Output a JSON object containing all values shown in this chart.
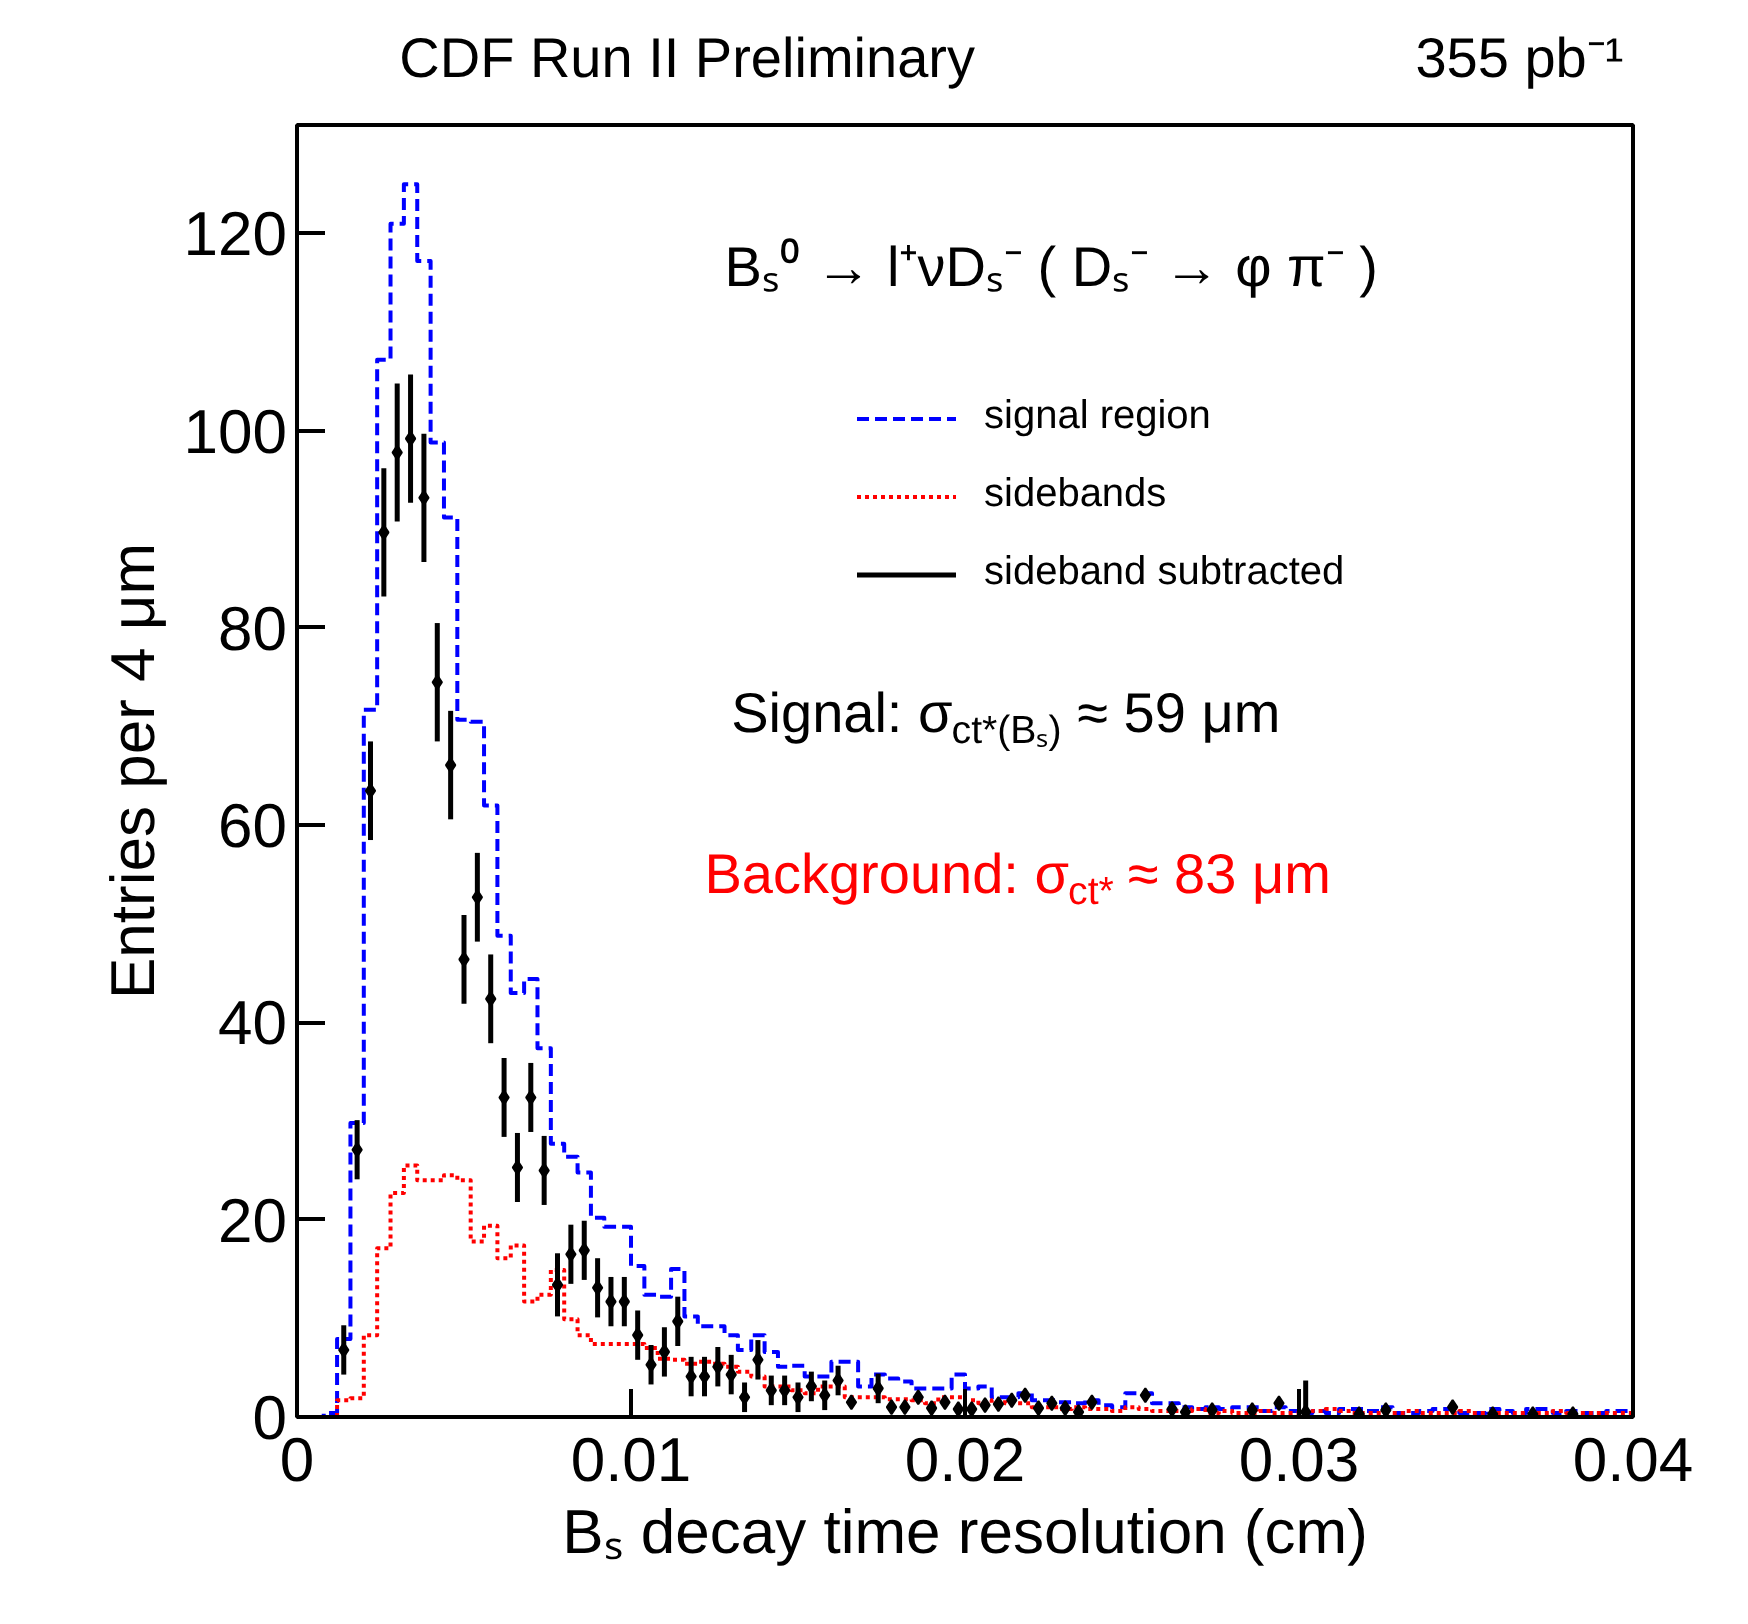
{
  "chart_data": {
    "type": "histogram",
    "title": "CDF Run II Preliminary",
    "xlabel": "Bₛ decay time resolution (cm)",
    "ylabel": "Entries per 4 μm",
    "annotations": [
      "355 pb⁻¹",
      "Bₛ⁰ → l⁺νDₛ⁻ ( Dₛ⁻ → φ π⁻ )",
      "Signal: σ$_{ct*(Bₛ)}$ ≈ 59 μm",
      "Background: σ$_{ct*}$ ≈ 83 μm"
    ],
    "bins": [
      0,
      0.0004,
      0.0008,
      0.0012,
      0.0016,
      0.002,
      0.0024,
      0.0028,
      0.0032,
      0.0036,
      0.004,
      0.0044,
      0.0048,
      0.0052,
      0.0056,
      0.006,
      0.0064,
      0.0068,
      0.0072,
      0.0076,
      0.008,
      0.0084,
      0.0088,
      0.0092,
      0.0096,
      0.01,
      0.0104,
      0.0108,
      0.0112,
      0.0116,
      0.012,
      0.0124,
      0.0128,
      0.0132,
      0.0136,
      0.014,
      0.0144,
      0.0148,
      0.0152,
      0.0156,
      0.016,
      0.0164,
      0.0168,
      0.0172,
      0.0176,
      0.018,
      0.0184,
      0.0188,
      0.0192,
      0.0196,
      0.02,
      0.0204,
      0.0208,
      0.0212,
      0.0216,
      0.022,
      0.0224,
      0.0228,
      0.0232,
      0.0236,
      0.024,
      0.0244,
      0.0248,
      0.0252,
      0.0256,
      0.026,
      0.0264,
      0.0268,
      0.0272,
      0.0276,
      0.028,
      0.0284,
      0.0288,
      0.0292,
      0.0296,
      0.03,
      0.0304,
      0.0308,
      0.0312,
      0.0316,
      0.032,
      0.0324,
      0.0328,
      0.0332,
      0.0336,
      0.034,
      0.0344,
      0.0348,
      0.0352,
      0.0356,
      0.036,
      0.0364,
      0.0368,
      0.0372,
      0.0376,
      0.038,
      0.0384,
      0.0388,
      0.0392,
      0.0396,
      0.04
    ],
    "series": [
      {
        "name": "signal region",
        "type": "histogram",
        "color": "#0000ff",
        "line_style": "dashed",
        "values": [
          0,
          0,
          0.4,
          7.9,
          29.8,
          71.7,
          107.2,
          121,
          125,
          117.2,
          98.8,
          91.2,
          70.7,
          70.5,
          62,
          48.8,
          43,
          44.4,
          37.4,
          27.7,
          26.4,
          24.8,
          20.2,
          19.3,
          19.3,
          15.3,
          12.4,
          12.2,
          15,
          10.2,
          9.2,
          9.2,
          8.3,
          6.8,
          8.3,
          6.6,
          5.1,
          5.2,
          4.1,
          4.1,
          5.6,
          5.6,
          3.1,
          4.3,
          3.9,
          3.6,
          2.9,
          2.9,
          2.9,
          4.3,
          2.9,
          3.1,
          2,
          2,
          2.4,
          1.7,
          1.7,
          1.5,
          1.4,
          1.7,
          1.2,
          1,
          2.4,
          2.4,
          1.4,
          1.4,
          1,
          0.8,
          1,
          0.8,
          1,
          1,
          0.6,
          1,
          0.6,
          0.4,
          0.6,
          0.4,
          0.8,
          0.8,
          0.6,
          1,
          0.4,
          0.4,
          0.6,
          0.8,
          0.8,
          0.4,
          0.4,
          0.8,
          0.6,
          0.4,
          0.8,
          0.8,
          0.4,
          0.6,
          0.4,
          0.4,
          0.6,
          0.6
        ]
      },
      {
        "name": "sidebands",
        "type": "histogram",
        "color": "#ff0000",
        "line_style": "dotted",
        "values": [
          0,
          0,
          0,
          1.7,
          1.9,
          8.3,
          17.1,
          22.7,
          25.5,
          24,
          24,
          24.5,
          24,
          17.8,
          19.4,
          16.1,
          17.4,
          11.7,
          12.4,
          14.9,
          9.9,
          8.3,
          7.4,
          7.4,
          7.4,
          7.4,
          7,
          5.9,
          5.8,
          5.4,
          5.6,
          5.4,
          5.1,
          4.6,
          4.1,
          3.1,
          3.1,
          2.7,
          2.4,
          3.1,
          3.1,
          2,
          2,
          2,
          1.8,
          1.8,
          1.7,
          1.4,
          2,
          2,
          1.7,
          1.4,
          1.7,
          1.4,
          1.4,
          1,
          1,
          0.8,
          1,
          0.8,
          0.8,
          0.6,
          1,
          0.8,
          0.6,
          0.6,
          0.6,
          0.8,
          0.4,
          0.6,
          0.4,
          0.4,
          0.6,
          0.4,
          0.4,
          0.4,
          0.6,
          0.8,
          0.6,
          0.4,
          0.4,
          0.4,
          0.4,
          0.6,
          0.4,
          0.4,
          0.4,
          0.6,
          0.4,
          0.4,
          0.4,
          0.4,
          0.4,
          0.4,
          0.6,
          0.4,
          0.4,
          0.4,
          0.4,
          0.4
        ]
      },
      {
        "name": "sideband subtracted",
        "type": "scatter",
        "color": "#000000",
        "marker": "diamond",
        "x": [
          0.0014,
          0.0018,
          0.0022,
          0.0026,
          0.003,
          0.0034,
          0.0038,
          0.0042,
          0.0046,
          0.005,
          0.0054,
          0.0058,
          0.0062,
          0.0066,
          0.007,
          0.0074,
          0.0078,
          0.0082,
          0.0086,
          0.009,
          0.0094,
          0.0098,
          0.0102,
          0.0106,
          0.011,
          0.0114,
          0.0118,
          0.0122,
          0.0126,
          0.013,
          0.0134,
          0.0138,
          0.0142,
          0.0146,
          0.015,
          0.0154,
          0.0158,
          0.0162,
          0.0166,
          0.017,
          0.0174,
          0.0178,
          0.0182,
          0.0186,
          0.019,
          0.0194,
          0.0198,
          0.0202,
          0.0206,
          0.021,
          0.0214,
          0.0218,
          0.0222,
          0.0226,
          0.023,
          0.0234,
          0.0238,
          0.0242,
          0.0246,
          0.025,
          0.0254,
          0.0258,
          0.0262,
          0.0266,
          0.027,
          0.0274,
          0.0278,
          0.0282,
          0.0286,
          0.029,
          0.0294,
          0.0298,
          0.0302,
          0.0306,
          0.031,
          0.0314,
          0.0318,
          0.0322,
          0.0326,
          0.033,
          0.0334,
          0.0338,
          0.0342,
          0.0346,
          0.035,
          0.0354,
          0.0358,
          0.0362,
          0.0366,
          0.037,
          0.0374,
          0.0378,
          0.0382
        ],
        "values": [
          6.8,
          27.1,
          63.5,
          89.7,
          97.8,
          99.2,
          93.2,
          74.5,
          66.1,
          46.4,
          52.7,
          42.4,
          32.4,
          25.3,
          32.4,
          25,
          13.4,
          16.5,
          16.9,
          13.1,
          11.7,
          11.7,
          8.3,
          5.3,
          6.6,
          9.7,
          4.1,
          4.1,
          5.1,
          4.3,
          2,
          5.8,
          2.7,
          2.7,
          2,
          3.1,
          2.2,
          3.7,
          1.5,
          null,
          2.9,
          1,
          1,
          2,
          0.9,
          1.5,
          0.8,
          0.8,
          1.2,
          1.3,
          1.7,
          2.2,
          0.9,
          1.4,
          0.9,
          0.5,
          1.5,
          null,
          null,
          null,
          2.2,
          null,
          0.8,
          0.5,
          null,
          0.7,
          null,
          null,
          0.7,
          null,
          1.4,
          null,
          0.5,
          null,
          null,
          null,
          0.3,
          null,
          0.7,
          null,
          null,
          null,
          null,
          1,
          null,
          null,
          0.3,
          null,
          null,
          0.3,
          null,
          null,
          0.3
        ],
        "errors": [
          2.5,
          3,
          5,
          6.5,
          7,
          6.5,
          6.5,
          6,
          5.5,
          4.5,
          4.5,
          4.5,
          4,
          3.5,
          3.5,
          3.5,
          3.2,
          3,
          3,
          3,
          2.5,
          2.5,
          2.5,
          2,
          2.5,
          2.5,
          2,
          2,
          2,
          2,
          1.5,
          2,
          1.5,
          1.5,
          1.5,
          1.5,
          1.5,
          1.5,
          null,
          null,
          1.5,
          null,
          null,
          null,
          null,
          null,
          null,
          null,
          null,
          null,
          null,
          null,
          null,
          null,
          null,
          null,
          null,
          null,
          null,
          null,
          null,
          null,
          null,
          null,
          null,
          null,
          null,
          null,
          null,
          null,
          null,
          null,
          [
            0,
            3.7
          ],
          null,
          null,
          null,
          null,
          null,
          null,
          null,
          null,
          null,
          null,
          null,
          null,
          null,
          null,
          null,
          null,
          null,
          null,
          null,
          null
        ]
      }
    ],
    "xlim": [
      0,
      0.04
    ],
    "ylim": [
      0,
      131
    ],
    "xticks": [
      0,
      0.01,
      0.02,
      0.03,
      0.04
    ],
    "yticks": [
      0,
      20,
      40,
      60,
      80,
      100,
      120
    ],
    "grid": false,
    "legend": "top right"
  }
}
